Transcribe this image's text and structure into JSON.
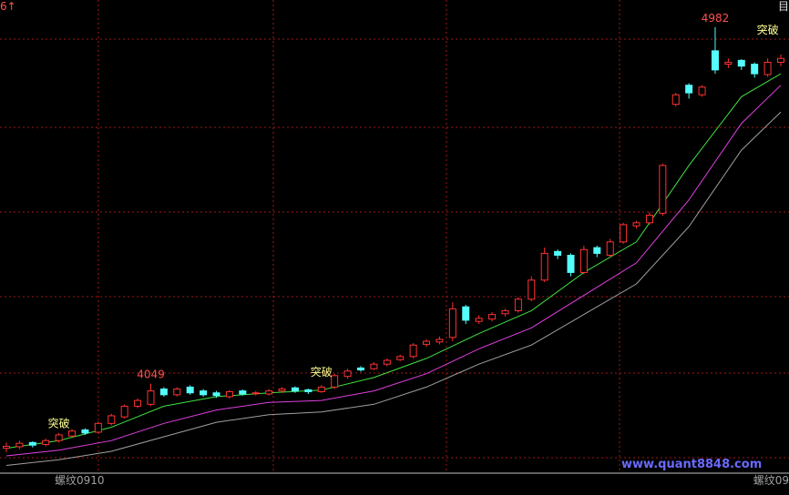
{
  "chart_data": {
    "type": "candlestick",
    "top_left": "6↑",
    "top_right": "目",
    "symbol_label": "螺纹0910",
    "symbol_label_right": "螺纹09",
    "watermark": "www.quant8848.com",
    "up_color": "#ff3232",
    "down_color": "#54fcfc",
    "ylim": [
      3791,
      5053
    ],
    "open": [
      3880,
      3884,
      3895,
      3890,
      3900,
      3912,
      3928,
      3922,
      3945,
      3962,
      3990,
      3995,
      4035,
      4020,
      4040,
      4030,
      4025,
      4015,
      4030,
      4024,
      4022,
      4030,
      4038,
      4033,
      4028,
      4040,
      4068,
      4090,
      4088,
      4100,
      4112,
      4120,
      4152,
      4158,
      4170,
      4250,
      4212,
      4218,
      4232,
      4240,
      4270,
      4320,
      4395,
      4385,
      4340,
      4405,
      4385,
      4420,
      4462,
      4470,
      4495,
      4780,
      4830,
      4805,
      4920,
      4885,
      4895,
      4885,
      4858,
      4890
    ],
    "high": [
      3895,
      3900,
      3898,
      3905,
      3920,
      3930,
      3932,
      3950,
      3970,
      3995,
      4010,
      4049,
      4040,
      4040,
      4045,
      4035,
      4030,
      4032,
      4034,
      4030,
      4035,
      4040,
      4042,
      4036,
      4045,
      4075,
      4088,
      4095,
      4105,
      4115,
      4125,
      4155,
      4165,
      4172,
      4262,
      4255,
      4228,
      4236,
      4245,
      4275,
      4330,
      4405,
      4400,
      4390,
      4410,
      4410,
      4428,
      4470,
      4475,
      4498,
      4625,
      4810,
      4835,
      4830,
      4982,
      4900,
      4898,
      4890,
      4900,
      4910
    ],
    "low": [
      3870,
      3878,
      3882,
      3885,
      3895,
      3908,
      3915,
      3918,
      3940,
      3958,
      3985,
      3990,
      4015,
      4015,
      4020,
      4015,
      4012,
      4010,
      4018,
      4018,
      4018,
      4025,
      4025,
      4022,
      4025,
      4035,
      4062,
      4080,
      4085,
      4095,
      4108,
      4115,
      4145,
      4152,
      4160,
      4205,
      4205,
      4212,
      4225,
      4235,
      4265,
      4315,
      4375,
      4330,
      4335,
      4380,
      4380,
      4415,
      4455,
      4465,
      4488,
      4775,
      4795,
      4800,
      4860,
      4875,
      4870,
      4850,
      4852,
      4880
    ],
    "close": [
      3885,
      3893,
      3888,
      3900,
      3915,
      3925,
      3920,
      3945,
      3965,
      3990,
      4005,
      4030,
      4020,
      4035,
      4025,
      4020,
      4018,
      4028,
      4022,
      4025,
      4030,
      4035,
      4030,
      4028,
      4040,
      4070,
      4082,
      4085,
      4100,
      4110,
      4120,
      4150,
      4160,
      4165,
      4245,
      4215,
      4220,
      4230,
      4240,
      4270,
      4320,
      4390,
      4385,
      4340,
      4400,
      4390,
      4420,
      4465,
      4470,
      4490,
      4620,
      4805,
      4810,
      4825,
      4870,
      4890,
      4880,
      4860,
      4890,
      4900
    ],
    "high_labels": [
      11,
      54
    ],
    "series": [
      {
        "color": "#40e040",
        "x": [
          0,
          4,
          8,
          12,
          16,
          20,
          24,
          28,
          32,
          36,
          40,
          44,
          48,
          52,
          56,
          59
        ],
        "values": [
          3880,
          3900,
          3935,
          3990,
          4015,
          4025,
          4032,
          4065,
          4115,
          4180,
          4240,
          4340,
          4420,
          4620,
          4800,
          4860
        ]
      },
      {
        "color": "#e040e0",
        "x": [
          0,
          4,
          8,
          12,
          16,
          20,
          24,
          28,
          32,
          36,
          40,
          44,
          48,
          52,
          56,
          59
        ],
        "values": [
          3860,
          3875,
          3900,
          3945,
          3980,
          4000,
          4005,
          4030,
          4075,
          4140,
          4195,
          4280,
          4365,
          4530,
          4730,
          4830
        ]
      },
      {
        "color": "#a0a0a0",
        "x": [
          0,
          4,
          8,
          12,
          16,
          20,
          24,
          28,
          32,
          36,
          40,
          44,
          48,
          52,
          56,
          59
        ],
        "values": [
          3835,
          3850,
          3872,
          3910,
          3948,
          3968,
          3975,
          3995,
          4040,
          4100,
          4150,
          4230,
          4310,
          4460,
          4660,
          4760
        ]
      }
    ],
    "annotations": [
      {
        "text": "突破",
        "index": 4,
        "value": 3935
      },
      {
        "text": "突破",
        "index": 24,
        "value": 4070
      },
      {
        "text": "突破",
        "index": 58,
        "value": 4965
      }
    ]
  }
}
